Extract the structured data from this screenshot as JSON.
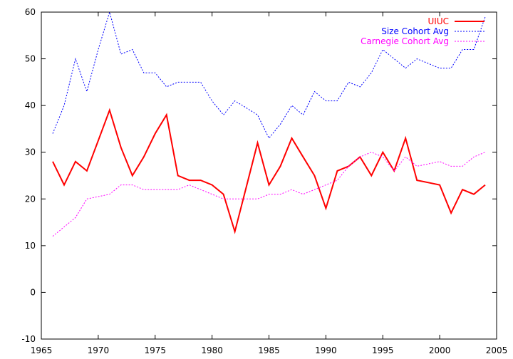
{
  "chart_data": {
    "type": "line",
    "title": "",
    "xlabel": "",
    "ylabel": "",
    "xlim": [
      1965,
      2005
    ],
    "ylim": [
      -10,
      60
    ],
    "x_ticks": [
      1965,
      1970,
      1975,
      1980,
      1985,
      1990,
      1995,
      2000,
      2005
    ],
    "y_ticks": [
      -10,
      0,
      10,
      20,
      30,
      40,
      50,
      60
    ],
    "grid": false,
    "legend_position": "top-right",
    "series": [
      {
        "name": "UIUC",
        "color": "#ff0000",
        "style": "solid",
        "x": [
          1966,
          1967,
          1968,
          1969,
          1970,
          1971,
          1972,
          1973,
          1974,
          1975,
          1976,
          1977,
          1978,
          1979,
          1980,
          1981,
          1982,
          1983,
          1984,
          1985,
          1986,
          1987,
          1988,
          1989,
          1990,
          1991,
          1992,
          1993,
          1994,
          1995,
          1996,
          1997,
          1998,
          1999,
          2000,
          2001,
          2002,
          2003,
          2004
        ],
        "values": [
          28,
          23,
          28,
          26,
          32.5,
          39,
          31,
          25,
          29,
          34,
          38,
          25,
          24,
          24,
          23,
          21,
          13,
          22.5,
          32,
          23,
          27,
          33,
          29,
          25,
          18,
          26,
          27,
          29,
          25,
          30,
          26,
          33,
          24,
          23.5,
          23,
          17,
          22,
          21,
          23
        ]
      },
      {
        "name": "Size Cohort Avg",
        "color": "#0000ff",
        "style": "dotted",
        "x": [
          1966,
          1967,
          1968,
          1969,
          1970,
          1971,
          1972,
          1973,
          1974,
          1975,
          1976,
          1977,
          1978,
          1979,
          1980,
          1981,
          1982,
          1983,
          1984,
          1985,
          1986,
          1987,
          1988,
          1989,
          1990,
          1991,
          1992,
          1993,
          1994,
          1995,
          1996,
          1997,
          1998,
          1999,
          2000,
          2001,
          2002,
          2003,
          2004
        ],
        "values": [
          34,
          40,
          50,
          43,
          52,
          60,
          51,
          52,
          47,
          47,
          44,
          45,
          45,
          45,
          41,
          38,
          41,
          39.5,
          38,
          33,
          36,
          40,
          38,
          43,
          41,
          41,
          45,
          44,
          47,
          52,
          50,
          48,
          50,
          49,
          48,
          48,
          52,
          52,
          59
        ]
      },
      {
        "name": "Carnegie Cohort Avg",
        "color": "#ff00ff",
        "style": "dotted",
        "x": [
          1966,
          1967,
          1968,
          1969,
          1970,
          1971,
          1972,
          1973,
          1974,
          1975,
          1976,
          1977,
          1978,
          1979,
          1980,
          1981,
          1982,
          1983,
          1984,
          1985,
          1986,
          1987,
          1988,
          1989,
          1990,
          1991,
          1992,
          1993,
          1994,
          1995,
          1996,
          1997,
          1998,
          1999,
          2000,
          2001,
          2002,
          2003,
          2004
        ],
        "values": [
          12,
          14,
          16,
          20,
          20.5,
          21,
          23,
          23,
          22,
          22,
          22,
          22,
          23,
          22,
          21,
          20,
          20,
          20,
          20,
          21,
          21,
          22,
          21,
          22,
          23,
          24,
          27,
          29,
          30,
          29,
          26,
          29,
          27,
          27.5,
          28,
          27,
          27,
          29,
          30
        ]
      }
    ]
  }
}
